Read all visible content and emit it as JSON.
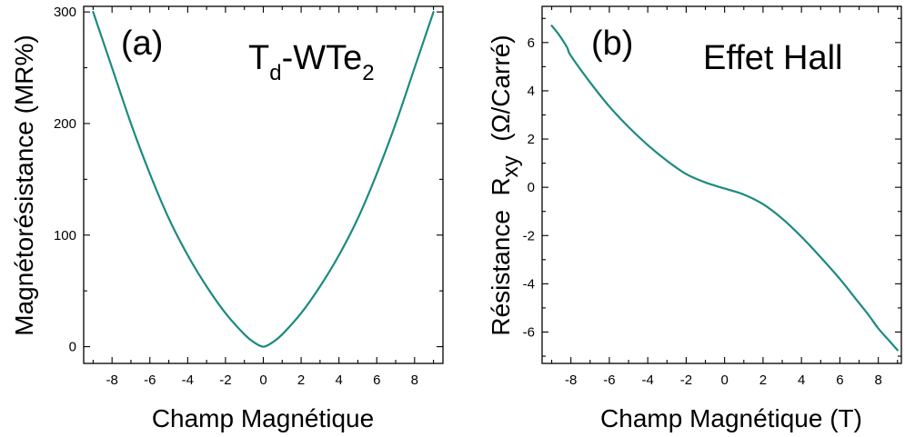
{
  "colors": {
    "curve": "#1b8a80",
    "axes": "#000000",
    "background": "#ffffff"
  },
  "chart_data": [
    {
      "type": "line",
      "panel_label": "(a)",
      "title": {
        "main": "T",
        "sub1": "d",
        "mid": "-WTe",
        "sub2": "2"
      },
      "xlabel": "Champ Magnétique",
      "ylabel": "Magnétorésistance (MR%)",
      "xlim": [
        -9.5,
        9.5
      ],
      "ylim": [
        -15,
        305
      ],
      "xticks": [
        -8,
        -6,
        -4,
        -2,
        0,
        2,
        4,
        6,
        8
      ],
      "xtick_labels": [
        "-8",
        "-6",
        "-4",
        "-2",
        "0",
        "2",
        "4",
        "6",
        "8"
      ],
      "xminor": [
        -9,
        -7,
        -5,
        -3,
        -1,
        1,
        3,
        5,
        7,
        9
      ],
      "yticks": [
        0,
        100,
        200,
        300
      ],
      "ytick_labels": [
        "0",
        "100",
        "200",
        "300"
      ],
      "yminor": [
        50,
        150,
        250
      ],
      "grid": false,
      "series": [
        {
          "x": [
            -9,
            -8,
            -7,
            -6,
            -5,
            -4,
            -3,
            -2,
            -1,
            -0.5,
            0,
            0.5,
            1,
            2,
            3,
            4,
            5,
            6,
            7,
            8,
            9
          ],
          "y": [
            300,
            250,
            200,
            155,
            115,
            82,
            54,
            30,
            11,
            4,
            0,
            4,
            11,
            30,
            54,
            82,
            115,
            155,
            200,
            250,
            300
          ]
        }
      ]
    },
    {
      "type": "line",
      "panel_label": "(b)",
      "title": "Effet Hall",
      "xlabel": "Champ Magnétique (T)",
      "ylabel": {
        "main": "Résistance  R",
        "sub": "xy",
        "tail": "  (Ω/Carré)"
      },
      "xlim": [
        -9.5,
        9.2
      ],
      "ylim": [
        -7.3,
        7.5
      ],
      "xticks": [
        -8,
        -6,
        -4,
        -2,
        0,
        2,
        4,
        6,
        8
      ],
      "xtick_labels": [
        "-8",
        "-6",
        "-4",
        "-2",
        "0",
        "2",
        "4",
        "6",
        "8"
      ],
      "xminor": [
        -9,
        -7,
        -5,
        -3,
        -1,
        1,
        3,
        5,
        7,
        9
      ],
      "yticks": [
        -6,
        -4,
        -2,
        0,
        2,
        4,
        6
      ],
      "ytick_labels": [
        "-6",
        "-4",
        "-2",
        "0",
        "2",
        "4",
        "6"
      ],
      "yminor": [
        -7,
        -5,
        -3,
        -1,
        1,
        3,
        5,
        7
      ],
      "grid": false,
      "series": [
        {
          "x": [
            -9,
            -8.6,
            -8.2,
            -8,
            -7,
            -6,
            -5,
            -4,
            -3,
            -2,
            -1,
            0,
            1,
            2,
            3,
            4,
            5,
            6,
            7,
            7.5,
            8,
            8.5,
            9
          ],
          "y": [
            6.7,
            6.3,
            5.8,
            5.45,
            4.35,
            3.35,
            2.5,
            1.75,
            1.1,
            0.55,
            0.2,
            -0.05,
            -0.3,
            -0.7,
            -1.3,
            -2.05,
            -2.9,
            -3.8,
            -4.8,
            -5.3,
            -5.85,
            -6.3,
            -6.75
          ]
        }
      ]
    }
  ]
}
